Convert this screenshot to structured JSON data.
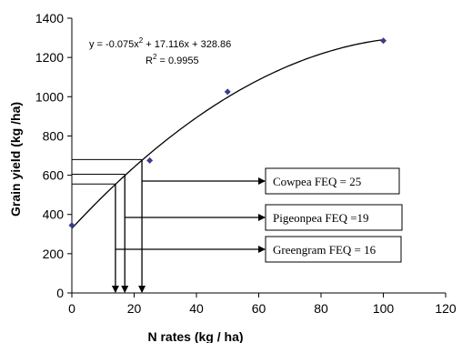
{
  "chart_data": {
    "type": "scatter",
    "xlabel": "N rates (kg / ha)",
    "ylabel": "Grain yield (kg /ha)",
    "xlim": [
      0,
      120
    ],
    "ylim": [
      0,
      1400
    ],
    "x_ticks": [
      0,
      20,
      40,
      60,
      80,
      100,
      120
    ],
    "y_ticks": [
      0,
      200,
      400,
      600,
      800,
      1000,
      1200,
      1400
    ],
    "grid": false,
    "points": {
      "x": [
        0,
        25,
        50,
        100
      ],
      "y": [
        345,
        675,
        1025,
        1285
      ]
    },
    "trendline": {
      "type": "polynomial",
      "coefficients": {
        "a": -0.075,
        "b": 17.116,
        "c": 328.86
      },
      "equation_label": "y = -0.075x",
      "equation_superscript": "2",
      "equation_rest": " + 17.116x + 328.86",
      "r2_label": "R",
      "r2_superscript": "2",
      "r2_rest": " = 0.9955",
      "x_range": [
        0,
        100
      ]
    },
    "annotations": [
      {
        "label": "Cowpea FEQ = 25",
        "x": 22.5,
        "y": 680
      },
      {
        "label": "Pigeonpea FEQ =19",
        "x": 17,
        "y": 605
      },
      {
        "label": "Greengram FEQ = 16",
        "x": 14,
        "y": 555
      }
    ],
    "marker_color": "#3c3c8c"
  }
}
